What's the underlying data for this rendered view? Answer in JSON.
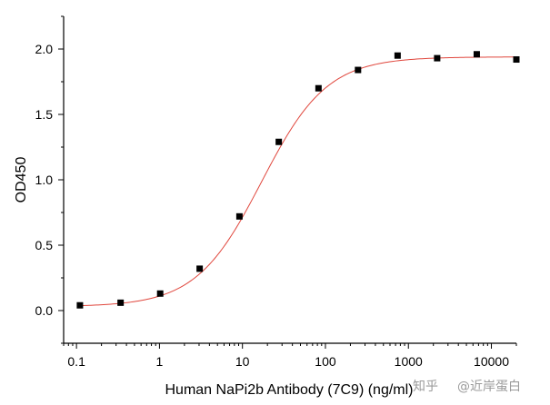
{
  "chart_data": {
    "type": "scatter",
    "title": "",
    "xlabel": "Human NaPi2b  Antibody (7C9) (ng/ml)",
    "ylabel": "OD450",
    "xscale": "log10",
    "xlim": [
      0.07,
      20000
    ],
    "ylim": [
      -0.25,
      2.25
    ],
    "xticks": [
      {
        "value": 0.1,
        "label": "0.1"
      },
      {
        "value": 1,
        "label": "1"
      },
      {
        "value": 10,
        "label": "10"
      },
      {
        "value": 100,
        "label": "100"
      },
      {
        "value": 1000,
        "label": "1000"
      },
      {
        "value": 10000,
        "label": "10000"
      }
    ],
    "yticks": [
      {
        "value": 0.0,
        "label": "0.0"
      },
      {
        "value": 0.5,
        "label": "0.5"
      },
      {
        "value": 1.0,
        "label": "1.0"
      },
      {
        "value": 1.5,
        "label": "1.5"
      },
      {
        "value": 2.0,
        "label": "2.0"
      }
    ],
    "series": [
      {
        "name": "data",
        "marker": "square",
        "color": "#000000",
        "x": [
          0.11,
          0.34,
          1.02,
          3.05,
          9.2,
          27.4,
          82.5,
          247,
          741,
          2222,
          6667,
          20000
        ],
        "y": [
          0.04,
          0.06,
          0.13,
          0.32,
          0.72,
          1.29,
          1.7,
          1.84,
          1.95,
          1.93,
          1.96,
          1.92
        ]
      }
    ],
    "fit": {
      "name": "4PL fit",
      "color": "#e0463c",
      "bottom": 0.03,
      "top": 1.94,
      "ec50": 17,
      "hill": 1.1
    }
  },
  "watermark": {
    "platform": "知乎",
    "author": "@近岸蛋白"
  }
}
